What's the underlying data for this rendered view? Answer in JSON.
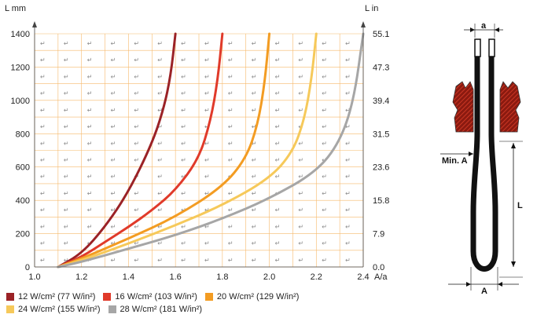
{
  "chart_data": {
    "type": "line",
    "xlabel": "A/a",
    "ylabel": "L mm",
    "ylabel_right": "L in",
    "xlim": [
      1.0,
      2.4
    ],
    "ylim": [
      0,
      1400
    ],
    "x_ticks": [
      "1.0",
      "1.2",
      "1.4",
      "1.6",
      "1.8",
      "2.0",
      "2.2",
      "2.4"
    ],
    "y_ticks_left": [
      "0",
      "200",
      "400",
      "600",
      "800",
      "1000",
      "1200",
      "1400"
    ],
    "y_ticks_right": [
      "0.0",
      "7.9",
      "15.8",
      "23.6",
      "31.5",
      "39.4",
      "47.3",
      "55.1"
    ],
    "grid": true,
    "series": [
      {
        "name": "12 W/cm² (77 W/in²)",
        "color": "#9b2226",
        "x": [
          1.1,
          1.2,
          1.3,
          1.4,
          1.5,
          1.55,
          1.58,
          1.6
        ],
        "y": [
          0,
          80,
          240,
          450,
          740,
          950,
          1150,
          1400
        ]
      },
      {
        "name": "16 W/cm² (103 W/in²)",
        "color": "#e03a2a",
        "x": [
          1.1,
          1.2,
          1.3,
          1.4,
          1.5,
          1.6,
          1.7,
          1.75,
          1.78,
          1.8
        ],
        "y": [
          0,
          60,
          150,
          240,
          340,
          460,
          650,
          880,
          1120,
          1400
        ]
      },
      {
        "name": "20 W/cm² (129 W/in²)",
        "color": "#f39c22",
        "x": [
          1.1,
          1.2,
          1.4,
          1.6,
          1.8,
          1.9,
          1.95,
          1.98,
          2.0
        ],
        "y": [
          0,
          50,
          170,
          300,
          480,
          650,
          850,
          1100,
          1400
        ]
      },
      {
        "name": "24 W/cm² (155 W/in²)",
        "color": "#f6c95a",
        "x": [
          1.1,
          1.2,
          1.4,
          1.6,
          1.8,
          2.0,
          2.1,
          2.15,
          2.18,
          2.2
        ],
        "y": [
          0,
          40,
          140,
          250,
          370,
          530,
          690,
          890,
          1130,
          1400
        ]
      },
      {
        "name": "28 W/cm² (181 W/in²)",
        "color": "#a6a6a6",
        "x": [
          1.1,
          1.2,
          1.4,
          1.6,
          1.8,
          2.0,
          2.2,
          2.3,
          2.36,
          2.4
        ],
        "y": [
          0,
          30,
          110,
          190,
          290,
          410,
          570,
          750,
          1000,
          1400
        ]
      }
    ]
  },
  "schematic": {
    "label_a": "a",
    "label_min_a": "Min. A",
    "label_L": "L",
    "label_A": "A"
  },
  "paragraph_mark": "↵"
}
